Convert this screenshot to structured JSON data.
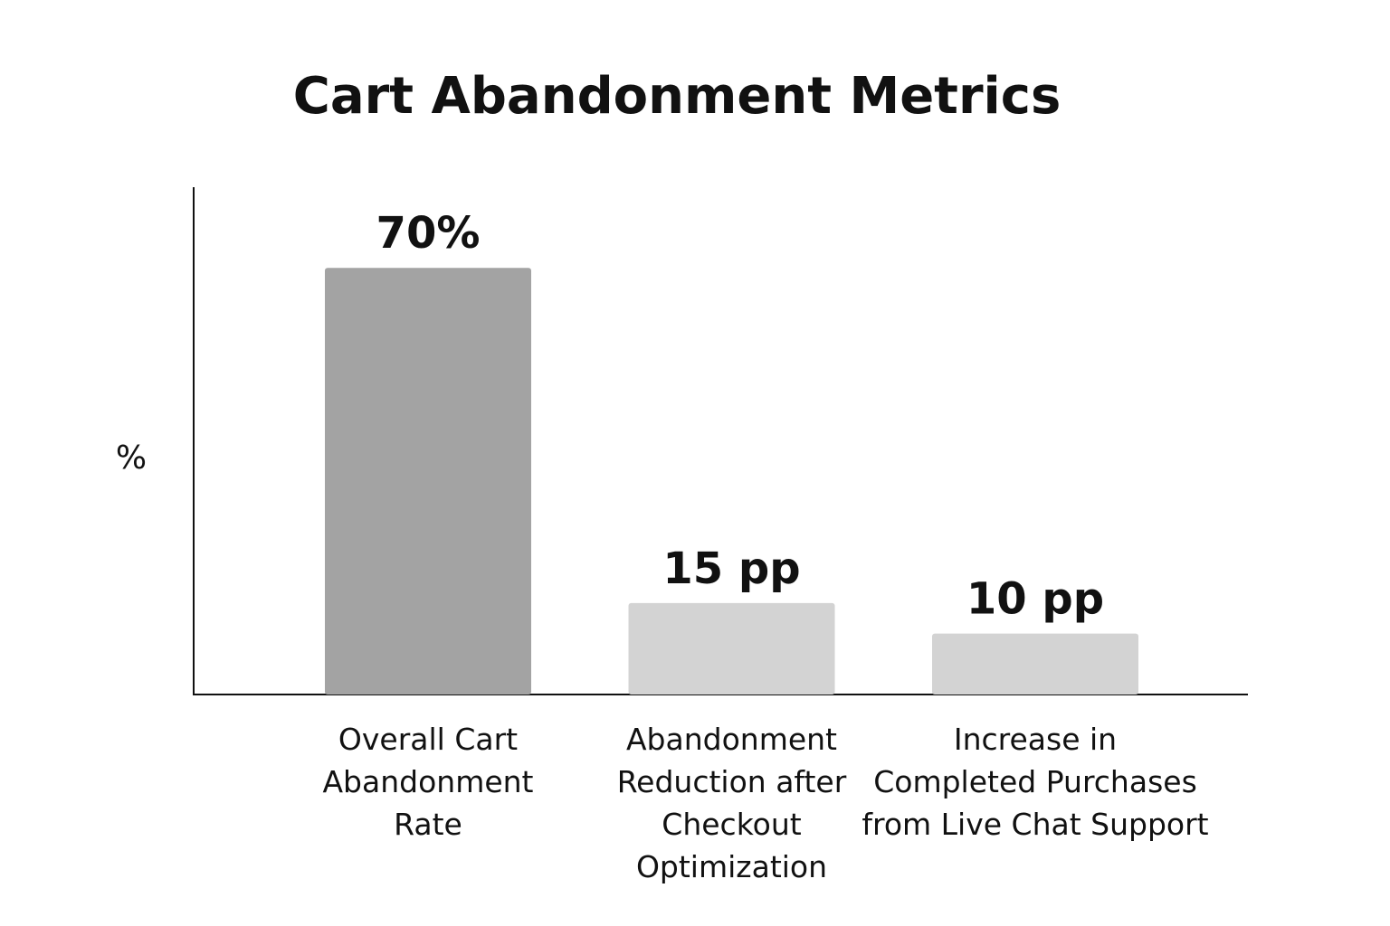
{
  "chart_data": {
    "type": "bar",
    "title": "Cart Abandonment Metrics",
    "xlabel": "",
    "ylabel": "%",
    "ylim": [
      0,
      80
    ],
    "grid": false,
    "categories": [
      "Overall Cart Abandonment Rate",
      "Abandonment Reduction after Checkout Optimization",
      "Increase in Completed Purchases from Live Chat Support"
    ],
    "category_lines": [
      [
        "Overall Cart",
        "Abandonment",
        "Rate"
      ],
      [
        "Abandonment",
        "Reduction after",
        "Checkout",
        "Optimization"
      ],
      [
        "Increase in",
        "Completed Purchases",
        "from Live Chat Support"
      ]
    ],
    "values": [
      70,
      15,
      10
    ],
    "value_labels": [
      "70%",
      "15 pp",
      "10 pp"
    ],
    "colors": [
      "#a3a3a3",
      "#d3d3d3",
      "#d3d3d3"
    ]
  }
}
